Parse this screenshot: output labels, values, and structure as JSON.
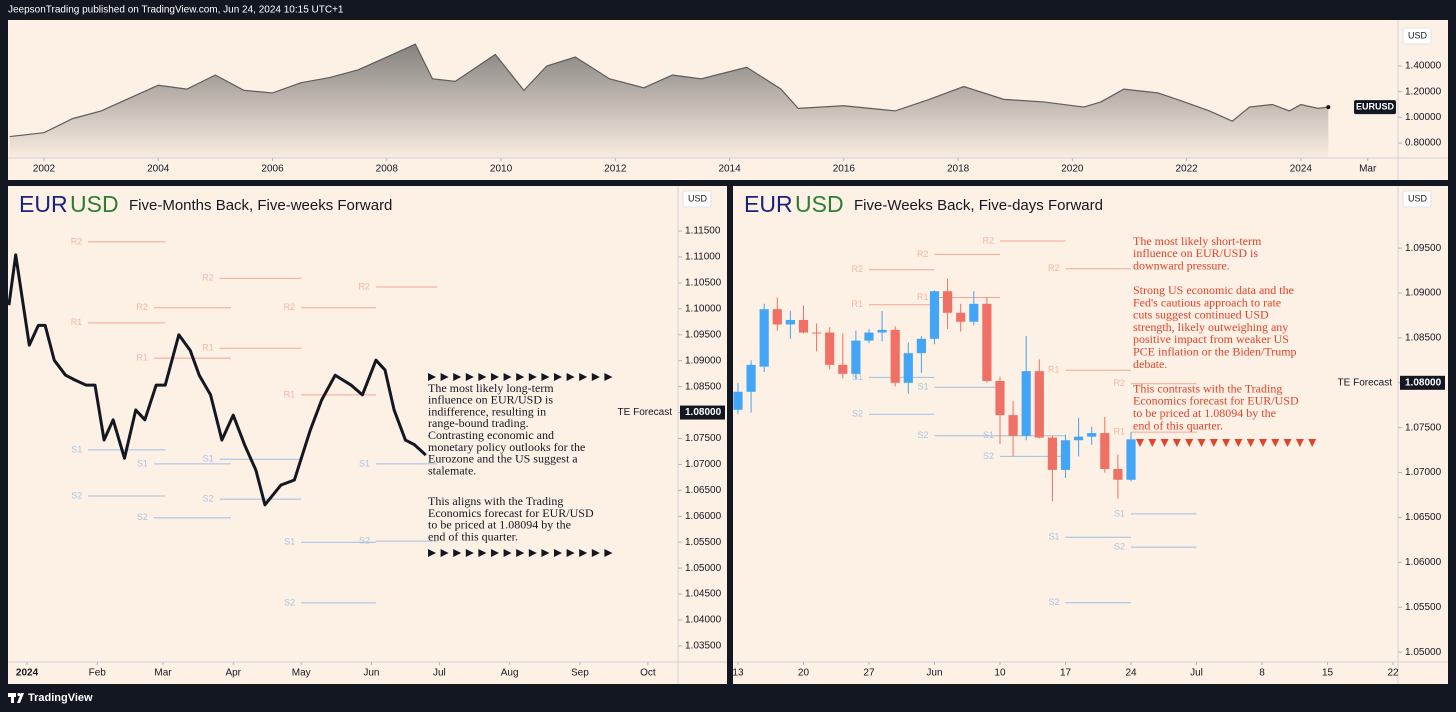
{
  "header": {
    "publisher": "JeepsonTrading published on TradingView.com, Jun 24, 2024 10:15 UTC+1"
  },
  "footer": {
    "brand": "TradingView"
  },
  "chart_data": [
    {
      "type": "area",
      "currency": "USD",
      "x": [
        2001.4,
        2002,
        2002.5,
        2003,
        2003.5,
        2004,
        2004.5,
        2005,
        2005.5,
        2006,
        2006.5,
        2007,
        2007.5,
        2008,
        2008.5,
        2008.8,
        2009.2,
        2009.9,
        2010.4,
        2010.8,
        2011.3,
        2011.9,
        2012.5,
        2013,
        2013.5,
        2014.3,
        2014.9,
        2015.2,
        2016,
        2016.9,
        2017.5,
        2018.1,
        2018.8,
        2019.5,
        2020.2,
        2020.5,
        2020.9,
        2021.5,
        2021.9,
        2022.4,
        2022.8,
        2023.1,
        2023.5,
        2023.8,
        2024,
        2024.3,
        2024.48
      ],
      "series": [
        {
          "name": "EURUSD",
          "color": "#5d5d5d",
          "values": [
            0.85,
            0.88,
            0.99,
            1.05,
            1.15,
            1.25,
            1.22,
            1.33,
            1.21,
            1.19,
            1.27,
            1.31,
            1.37,
            1.47,
            1.57,
            1.3,
            1.28,
            1.49,
            1.21,
            1.4,
            1.47,
            1.3,
            1.23,
            1.33,
            1.3,
            1.39,
            1.22,
            1.07,
            1.09,
            1.05,
            1.14,
            1.24,
            1.14,
            1.12,
            1.08,
            1.12,
            1.22,
            1.19,
            1.13,
            1.05,
            0.97,
            1.08,
            1.1,
            1.05,
            1.1,
            1.07,
            1.08
          ]
        }
      ],
      "xlim": [
        2001.37,
        2025.7
      ],
      "xticks": [
        2002,
        2004,
        2006,
        2008,
        2010,
        2012,
        2014,
        2016,
        2018,
        2020,
        2022,
        2024,
        {
          "value": 2025.17,
          "label": "Mar"
        }
      ],
      "ylim": [
        0.683,
        1.743
      ],
      "yticks": [
        {
          "value": 0.8,
          "label": "0.80000"
        },
        {
          "value": 1.0,
          "label": "1.00000"
        },
        {
          "value": 1.2,
          "label": "1.20000"
        },
        {
          "value": 1.4,
          "label": "1.40000"
        }
      ]
    },
    {
      "type": "line",
      "currency": "USD",
      "base": "EUR",
      "quote": "USD",
      "title": "Five-Months Back, Five-weeks Forward",
      "color": "#131722",
      "x": [
        -8,
        -5,
        -2,
        1,
        5,
        8,
        12,
        17,
        21,
        26,
        30,
        34,
        38,
        43,
        48,
        52,
        57,
        61,
        67,
        72,
        76,
        81,
        86,
        91,
        96,
        101,
        105,
        112,
        118,
        125,
        130,
        136,
        143,
        148,
        154,
        158,
        162,
        167,
        171,
        176
      ],
      "values": [
        1.1007,
        1.1104,
        1.1017,
        1.093,
        1.0968,
        1.0968,
        1.0901,
        1.0872,
        1.0863,
        1.0853,
        1.0853,
        1.0747,
        1.0786,
        1.0712,
        1.0805,
        1.0786,
        1.0853,
        1.0853,
        1.095,
        1.092,
        1.0872,
        1.0834,
        1.0747,
        1.0795,
        1.0738,
        1.0689,
        1.0622,
        1.066,
        1.067,
        1.0766,
        1.0824,
        1.0872,
        1.0853,
        1.0834,
        1.0901,
        1.0882,
        1.0805,
        1.0747,
        1.0738,
        1.0718
      ],
      "xlim": [
        -8.4,
        287.3
      ],
      "xticks": [
        {
          "value": 0,
          "label": "2024"
        },
        {
          "value": 31,
          "label": "Feb"
        },
        {
          "value": 60,
          "label": "Mar"
        },
        {
          "value": 91,
          "label": "Apr"
        },
        {
          "value": 121,
          "label": "May"
        },
        {
          "value": 152,
          "label": "Jun"
        },
        {
          "value": 182,
          "label": "Jul"
        },
        {
          "value": 213,
          "label": "Aug"
        },
        {
          "value": 244,
          "label": "Sep"
        },
        {
          "value": 274,
          "label": "Oct"
        }
      ],
      "ylim": [
        1.0319,
        1.1233
      ],
      "yticks": [
        {
          "value": 1.035,
          "label": "1.03500"
        },
        {
          "value": 1.04,
          "label": "1.04000"
        },
        {
          "value": 1.045,
          "label": "1.04500"
        },
        {
          "value": 1.05,
          "label": "1.05000"
        },
        {
          "value": 1.055,
          "label": "1.05500"
        },
        {
          "value": 1.06,
          "label": "1.06000"
        },
        {
          "value": 1.065,
          "label": "1.06500"
        },
        {
          "value": 1.07,
          "label": "1.07000"
        },
        {
          "value": 1.075,
          "label": "1.07500"
        },
        {
          "value": 1.08,
          "label": "1.08000"
        },
        {
          "value": 1.085,
          "label": "1.08500"
        },
        {
          "value": 1.09,
          "label": "1.09000"
        },
        {
          "value": 1.095,
          "label": "1.09500"
        },
        {
          "value": 1.1,
          "label": "1.10000"
        },
        {
          "value": 1.105,
          "label": "1.10500"
        },
        {
          "value": 1.11,
          "label": "1.11000"
        },
        {
          "value": 1.115,
          "label": "1.11500"
        }
      ],
      "forecast": {
        "label": "TE Forecast",
        "value": 1.08,
        "value_label": "1.08000"
      },
      "levels": [
        {
          "label": "R2",
          "value": 1.1129,
          "x": [
            27,
            61
          ]
        },
        {
          "label": "R1",
          "value": 1.0973,
          "x": [
            27,
            61
          ]
        },
        {
          "label": "S1",
          "value": 1.0728,
          "x": [
            27,
            61
          ]
        },
        {
          "label": "S2",
          "value": 1.0639,
          "x": [
            27,
            61
          ]
        },
        {
          "label": "R2",
          "value": 1.1002,
          "x": [
            56,
            90
          ]
        },
        {
          "label": "R1",
          "value": 1.0905,
          "x": [
            56,
            90
          ]
        },
        {
          "label": "S1",
          "value": 1.0701,
          "x": [
            56,
            90
          ]
        },
        {
          "label": "S2",
          "value": 1.0597,
          "x": [
            56,
            90
          ]
        },
        {
          "label": "R2",
          "value": 1.1059,
          "x": [
            85,
            121
          ]
        },
        {
          "label": "R1",
          "value": 1.0924,
          "x": [
            85,
            121
          ]
        },
        {
          "label": "S1",
          "value": 1.071,
          "x": [
            85,
            121
          ]
        },
        {
          "label": "S2",
          "value": 1.0633,
          "x": [
            85,
            121
          ]
        },
        {
          "label": "R2",
          "value": 1.1002,
          "x": [
            121,
            154
          ]
        },
        {
          "label": "R1",
          "value": 1.0834,
          "x": [
            121,
            154
          ]
        },
        {
          "label": "S1",
          "value": 1.055,
          "x": [
            121,
            154
          ]
        },
        {
          "label": "S2",
          "value": 1.0433,
          "x": [
            121,
            154
          ]
        },
        {
          "label": "R2",
          "value": 1.1042,
          "x": [
            154,
            181
          ]
        },
        {
          "label": "S1",
          "value": 1.0701,
          "x": [
            154,
            181
          ]
        },
        {
          "label": "S2",
          "value": 1.0552,
          "x": [
            154,
            181
          ]
        }
      ],
      "annotation": [
        [
          "The most likely long-term",
          "influence on EUR/USD is",
          "indifference, resulting in",
          "range-bound trading.",
          "Contrasting economic and",
          "monetary policy outlooks for the",
          "Eurozone and the US suggest a",
          "stalemate."
        ],
        [
          "This aligns with the Trading",
          "Economics forecast for EUR/USD",
          "to be priced at 1.08094 by the",
          "end of this quarter."
        ]
      ]
    },
    {
      "type": "candlestick",
      "currency": "USD",
      "base": "EUR",
      "quote": "USD",
      "title": "Five-Weeks Back, Five-days Forward",
      "colors": {
        "up": "#42a5f5",
        "down": "#ef7064"
      },
      "x": [
        0,
        1,
        2,
        3,
        4,
        5,
        6,
        7,
        8,
        9,
        10,
        11,
        12,
        13,
        14,
        15,
        16,
        17,
        18,
        19,
        20,
        21,
        22,
        23,
        24,
        25,
        26,
        27,
        28,
        29,
        30
      ],
      "open": [
        1.077,
        1.079,
        1.0818,
        1.0882,
        1.0865,
        1.087,
        1.0856,
        1.0856,
        1.082,
        1.081,
        1.0847,
        1.0856,
        1.0859,
        1.08,
        1.0833,
        1.0849,
        1.0902,
        1.0878,
        1.0868,
        1.0888,
        1.0802,
        1.0764,
        1.0741,
        1.0813,
        1.0739,
        1.0703,
        1.0736,
        1.074,
        1.0744,
        1.0704,
        1.0692
      ],
      "high": [
        1.08,
        1.0825,
        1.0888,
        1.0895,
        1.088,
        1.0886,
        1.0866,
        1.0862,
        1.0855,
        1.0858,
        1.086,
        1.088,
        1.0863,
        1.0845,
        1.0852,
        1.0903,
        1.0916,
        1.0888,
        1.0902,
        1.0895,
        1.0807,
        1.078,
        1.0852,
        1.0826,
        1.0741,
        1.0742,
        1.0761,
        1.0751,
        1.0762,
        1.072,
        1.0745
      ],
      "low": [
        1.0765,
        1.0767,
        1.0812,
        1.0858,
        1.0849,
        1.0855,
        1.0835,
        1.0815,
        1.0805,
        1.0804,
        1.0844,
        1.0846,
        1.0796,
        1.0788,
        1.0811,
        1.0843,
        1.086,
        1.0857,
        1.0864,
        1.08,
        1.0732,
        1.0718,
        1.0736,
        1.0738,
        1.0668,
        1.0694,
        1.0718,
        1.0731,
        1.07,
        1.0671,
        1.069
      ],
      "close": [
        1.079,
        1.082,
        1.0882,
        1.0865,
        1.087,
        1.0856,
        1.0855,
        1.082,
        1.081,
        1.0847,
        1.0856,
        1.0859,
        1.08,
        1.0833,
        1.0849,
        1.0902,
        1.0878,
        1.0868,
        1.0888,
        1.0802,
        1.0764,
        1.0741,
        1.0813,
        1.0739,
        1.0703,
        1.0736,
        1.074,
        1.0744,
        1.0704,
        1.0692,
        1.0737
      ],
      "xlim": [
        -0.38,
        50.38
      ],
      "xticks": [
        {
          "value": 0,
          "label": "13"
        },
        {
          "value": 5,
          "label": "20"
        },
        {
          "value": 10,
          "label": "27"
        },
        {
          "value": 15,
          "label": "Jun"
        },
        {
          "value": 20,
          "label": "10"
        },
        {
          "value": 25,
          "label": "17"
        },
        {
          "value": 30,
          "label": "24"
        },
        {
          "value": 35,
          "label": "Jul"
        },
        {
          "value": 40,
          "label": "8"
        },
        {
          "value": 45,
          "label": "15"
        },
        {
          "value": 50,
          "label": "22"
        }
      ],
      "ylim": [
        1.0489,
        1.1017
      ],
      "yticks": [
        {
          "value": 1.05,
          "label": "1.05000"
        },
        {
          "value": 1.055,
          "label": "1.05500"
        },
        {
          "value": 1.06,
          "label": "1.06000"
        },
        {
          "value": 1.065,
          "label": "1.06500"
        },
        {
          "value": 1.07,
          "label": "1.07000"
        },
        {
          "value": 1.075,
          "label": "1.07500"
        },
        {
          "value": 1.08,
          "label": "1.08000"
        },
        {
          "value": 1.085,
          "label": "1.08500"
        },
        {
          "value": 1.09,
          "label": "1.09000"
        },
        {
          "value": 1.095,
          "label": "1.09500"
        }
      ],
      "forecast": {
        "label": "TE Forecast",
        "value": 1.08,
        "value_label": "1.08000"
      },
      "levels": [
        {
          "label": "R2",
          "value": 1.0926,
          "x": [
            10,
            15
          ]
        },
        {
          "label": "R1",
          "value": 1.0887,
          "x": [
            10,
            15
          ]
        },
        {
          "label": "S1",
          "value": 1.0806,
          "x": [
            10,
            15
          ]
        },
        {
          "label": "S2",
          "value": 1.0765,
          "x": [
            10,
            15
          ]
        },
        {
          "label": "R2",
          "value": 1.0943,
          "x": [
            15,
            20
          ]
        },
        {
          "label": "R1",
          "value": 1.0895,
          "x": [
            15,
            20
          ]
        },
        {
          "label": "S1",
          "value": 1.0795,
          "x": [
            15,
            20
          ]
        },
        {
          "label": "S2",
          "value": 1.0741,
          "x": [
            15,
            20
          ]
        },
        {
          "label": "R2",
          "value": 1.0958,
          "x": [
            20,
            25
          ]
        },
        {
          "label": "S1",
          "value": 1.0741,
          "x": [
            20,
            25
          ]
        },
        {
          "label": "S2",
          "value": 1.0718,
          "x": [
            20,
            25
          ]
        },
        {
          "label": "R2",
          "value": 1.0927,
          "x": [
            25,
            30
          ]
        },
        {
          "label": "R1",
          "value": 1.0814,
          "x": [
            25,
            30
          ]
        },
        {
          "label": "S1",
          "value": 1.0628,
          "x": [
            25,
            30
          ]
        },
        {
          "label": "S2",
          "value": 1.0555,
          "x": [
            25,
            30
          ]
        },
        {
          "label": "R2",
          "value": 1.0799,
          "x": [
            30,
            35
          ]
        },
        {
          "label": "R1",
          "value": 1.0745,
          "x": [
            30,
            35
          ]
        },
        {
          "label": "S1",
          "value": 1.0654,
          "x": [
            30,
            35
          ]
        },
        {
          "label": "S2",
          "value": 1.0617,
          "x": [
            30,
            35
          ]
        }
      ],
      "annotation": [
        [
          "The most likely short-term",
          "influence on EUR/USD is",
          "downward pressure."
        ],
        [
          "Strong US economic data and the",
          "Fed's cautious approach to rate",
          "cuts suggest continued USD",
          "strength, likely outweighing any",
          "positive impact from weaker US",
          "PCE inflation or the Biden/Trump",
          "debate."
        ],
        [
          "This contrasts with the Trading",
          "Economics forecast for EUR/USD",
          "to be priced at 1.08094 by the",
          "end of this quarter."
        ]
      ]
    }
  ]
}
